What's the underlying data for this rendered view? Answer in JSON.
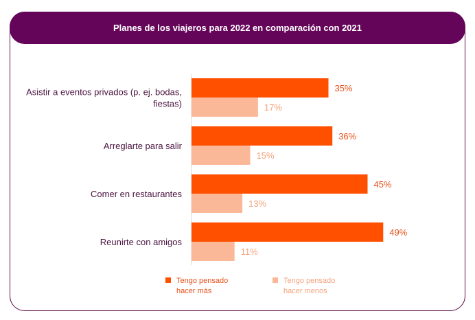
{
  "chart_data": {
    "type": "bar",
    "orientation": "horizontal",
    "title": "Planes de los viajeros para 2022  en comparación con 2021",
    "categories": [
      [
        "Asistir a eventos privados (p. ej. bodas,",
        "fiestas)"
      ],
      [
        "Arreglarte para salir"
      ],
      [
        "Comer en restaurantes"
      ],
      [
        "Reunirte con amigos"
      ]
    ],
    "series": [
      {
        "name": "Tengo pensado hacer más",
        "legend_lines": [
          "Tengo pensado",
          "hacer más"
        ],
        "color": "#ff5000",
        "values": [
          35,
          36,
          45,
          49
        ],
        "labels": [
          "35%",
          "36%",
          "45%",
          "49%"
        ]
      },
      {
        "name": "Tengo pensado hacer menos",
        "legend_lines": [
          "Tengo pensado",
          "hacer menos"
        ],
        "color": "#fbb899",
        "values": [
          17,
          15,
          13,
          11
        ],
        "labels": [
          "17%",
          "15%",
          "13%",
          "11%"
        ]
      }
    ],
    "xlim": [
      0,
      100
    ],
    "grid": false,
    "legend_position": "bottom"
  }
}
